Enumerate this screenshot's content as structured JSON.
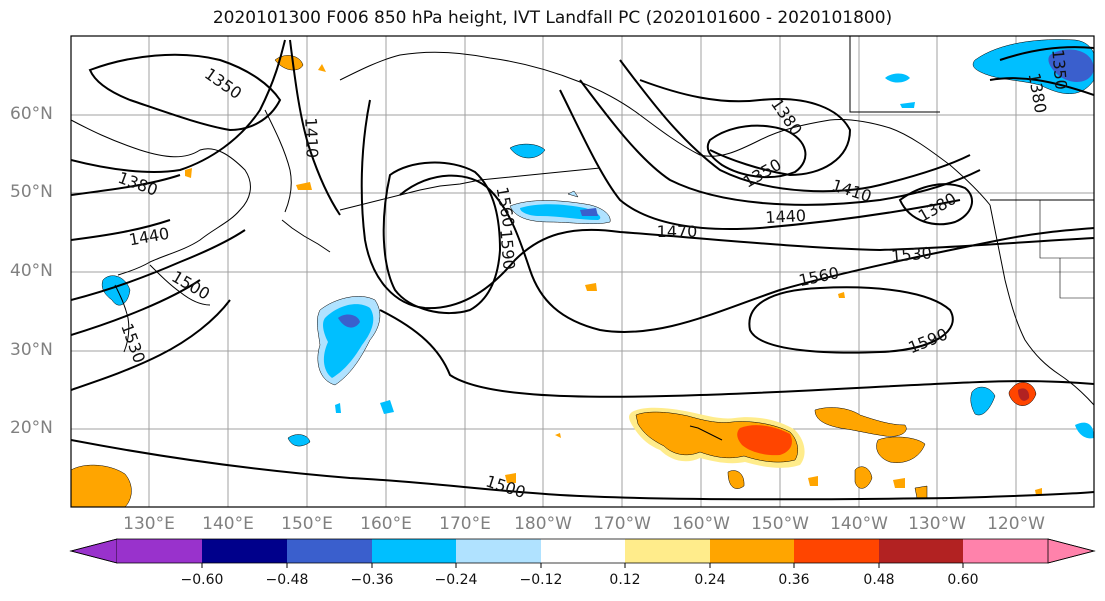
{
  "title": "2020101300 F006 850 hPa height, IVT Landfall PC (2020101600 - 2020101800)",
  "lat_labels": [
    "60°N",
    "50°N",
    "40°N",
    "30°N",
    "20°N"
  ],
  "lon_labels": [
    "130°E",
    "140°E",
    "150°E",
    "160°E",
    "170°E",
    "180°W",
    "170°W",
    "160°W",
    "150°W",
    "140°W",
    "130°W",
    "120°W"
  ],
  "contour_labels": [
    {
      "text": "1350"
    },
    {
      "text": "1410"
    },
    {
      "text": "1380"
    },
    {
      "text": "1440"
    },
    {
      "text": "1500"
    },
    {
      "text": "1530"
    },
    {
      "text": "1560"
    },
    {
      "text": "1590"
    },
    {
      "text": "1470"
    },
    {
      "text": "1440"
    },
    {
      "text": "1410"
    },
    {
      "text": "1380"
    },
    {
      "text": "1350"
    },
    {
      "text": "1380"
    },
    {
      "text": "1530"
    },
    {
      "text": "1560"
    },
    {
      "text": "1590"
    },
    {
      "text": "1500"
    },
    {
      "text": "1350"
    },
    {
      "text": "1380"
    }
  ],
  "colorbar": {
    "ticks": [
      "−0.60",
      "−0.48",
      "−0.36",
      "−0.24",
      "−0.12",
      "0.12",
      "0.24",
      "0.36",
      "0.48",
      "0.60"
    ],
    "colors": [
      "#9932cc",
      "#00008b",
      "#3a5fcd",
      "#00bfff",
      "#b0e2ff",
      "#ffffff",
      "#ffec8b",
      "#ffa500",
      "#ff4500",
      "#b22222",
      "#ff82ab"
    ]
  },
  "colors": {
    "frame": "#000000",
    "grid": "#a0a0a0",
    "axis_label": "#808080",
    "contour": "#000000"
  }
}
